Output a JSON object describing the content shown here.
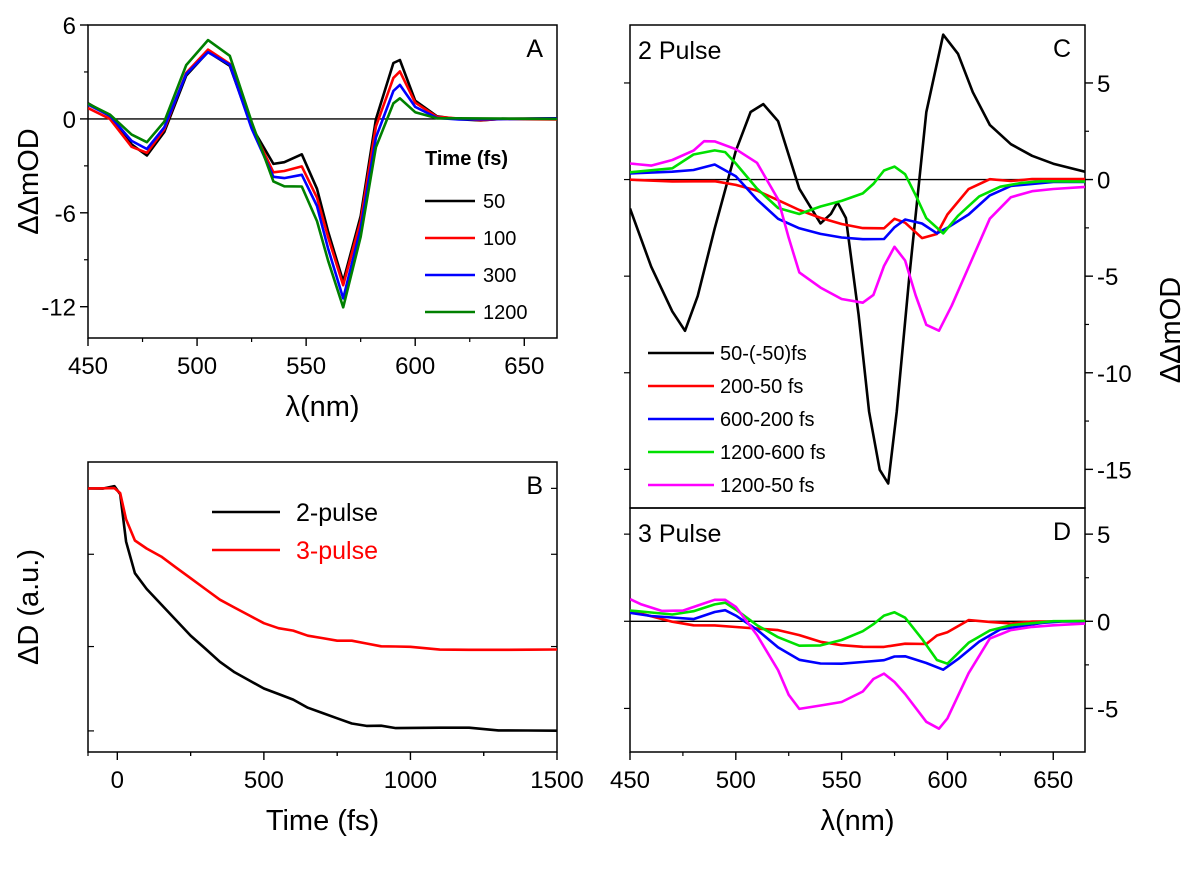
{
  "chart_data": [
    {
      "id": "A",
      "type": "line",
      "panel_letter": "A",
      "xlabel": "λ(nm)",
      "ylabel": "ΔΔmOD",
      "xlim": [
        450,
        665
      ],
      "ylim": [
        -14,
        6
      ],
      "xticks": [
        450,
        500,
        550,
        600,
        650
      ],
      "yticks": [
        6,
        0,
        -6,
        -12
      ],
      "zero_line": true,
      "legend_title": "Time (fs)",
      "legend_position": "center-right",
      "series": [
        {
          "name": "50",
          "color": "#000000",
          "x": [
            450,
            460,
            470,
            477,
            485,
            495,
            505,
            515,
            525,
            535,
            540,
            548,
            555,
            560,
            567,
            575,
            582,
            590,
            593,
            600,
            610,
            620,
            630,
            640,
            650,
            665
          ],
          "y": [
            1,
            0.2,
            -1.6,
            -2.3,
            -0.8,
            2.8,
            4.3,
            3.4,
            -0.5,
            -2.9,
            -2.8,
            -2.3,
            -4.5,
            -7.2,
            -10.4,
            -6.2,
            0,
            3.6,
            3.8,
            1.2,
            0.2,
            0,
            -0.1,
            0,
            0,
            0
          ]
        },
        {
          "name": "100",
          "color": "#ff0000",
          "x": [
            450,
            460,
            470,
            477,
            485,
            495,
            505,
            515,
            525,
            535,
            540,
            548,
            555,
            560,
            567,
            575,
            582,
            590,
            593,
            600,
            610,
            620,
            630,
            640,
            650,
            665
          ],
          "y": [
            0.7,
            0,
            -1.8,
            -2.2,
            -0.7,
            2.9,
            4.4,
            3.5,
            -0.5,
            -3.4,
            -3.3,
            -3.0,
            -5.0,
            -7.5,
            -10.6,
            -6.5,
            -0.5,
            2.6,
            3.0,
            1.0,
            0.1,
            0,
            -0.1,
            0,
            0,
            0
          ]
        },
        {
          "name": "300",
          "color": "#0000ff",
          "x": [
            450,
            460,
            470,
            477,
            485,
            495,
            505,
            515,
            525,
            535,
            540,
            548,
            555,
            560,
            567,
            575,
            582,
            590,
            593,
            600,
            610,
            620,
            630,
            640,
            650,
            665
          ],
          "y": [
            0.9,
            0.2,
            -1.4,
            -1.9,
            -0.5,
            2.9,
            4.3,
            3.5,
            -0.6,
            -3.7,
            -3.8,
            -3.6,
            -5.6,
            -8.3,
            -11.5,
            -7.0,
            -1.2,
            1.8,
            2.2,
            0.8,
            0.1,
            0,
            0,
            0,
            0,
            0
          ]
        },
        {
          "name": "1200",
          "color": "#008000",
          "x": [
            450,
            460,
            470,
            477,
            485,
            495,
            505,
            515,
            525,
            535,
            540,
            548,
            555,
            560,
            567,
            575,
            582,
            590,
            593,
            600,
            610,
            620,
            630,
            640,
            650,
            665
          ],
          "y": [
            1,
            0.3,
            -1.0,
            -1.5,
            -0.2,
            3.4,
            5.0,
            4.0,
            -0.2,
            -4.0,
            -4.3,
            -4.3,
            -6.5,
            -9.0,
            -12.0,
            -7.5,
            -1.8,
            1.0,
            1.3,
            0.4,
            0,
            0,
            0,
            0,
            0,
            0
          ]
        }
      ]
    },
    {
      "id": "B",
      "type": "line",
      "panel_letter": "B",
      "xlabel": "Time (fs)",
      "ylabel": "ΔD (a.u.)",
      "xlim": [
        -100,
        1500
      ],
      "ylim": [
        0,
        1.1
      ],
      "xticks": [
        0,
        500,
        1000,
        1500
      ],
      "yticks": [],
      "legend_position": "top-center",
      "series": [
        {
          "name": "2-pulse",
          "color": "#000000",
          "legend_color": "#000000",
          "x": [
            -100,
            -50,
            -10,
            10,
            30,
            60,
            100,
            150,
            200,
            250,
            300,
            350,
            400,
            450,
            500,
            550,
            600,
            650,
            700,
            750,
            800,
            850,
            900,
            950,
            1000,
            1100,
            1200,
            1300,
            1400,
            1500
          ],
          "y": [
            1.0,
            1.0,
            1.01,
            0.98,
            0.8,
            0.68,
            0.62,
            0.56,
            0.5,
            0.44,
            0.39,
            0.34,
            0.3,
            0.27,
            0.24,
            0.22,
            0.2,
            0.17,
            0.15,
            0.13,
            0.11,
            0.1,
            0.1,
            0.09,
            0.09,
            0.09,
            0.09,
            0.08,
            0.08,
            0.08
          ]
        },
        {
          "name": "3-pulse",
          "color": "#ff0000",
          "legend_color": "#ff0000",
          "x": [
            -100,
            -50,
            -10,
            10,
            30,
            60,
            100,
            150,
            200,
            250,
            300,
            350,
            400,
            450,
            500,
            550,
            600,
            650,
            700,
            750,
            800,
            850,
            900,
            950,
            1000,
            1100,
            1200,
            1300,
            1400,
            1500
          ],
          "y": [
            1.0,
            1.0,
            1.0,
            0.98,
            0.88,
            0.8,
            0.77,
            0.74,
            0.7,
            0.66,
            0.62,
            0.58,
            0.55,
            0.52,
            0.49,
            0.47,
            0.46,
            0.44,
            0.43,
            0.42,
            0.42,
            0.41,
            0.4,
            0.4,
            0.4,
            0.39,
            0.39,
            0.39,
            0.39,
            0.39
          ]
        }
      ]
    },
    {
      "id": "C",
      "type": "line",
      "panel_letter": "C",
      "panel_title": "2 Pulse",
      "xlabel": "",
      "ylabel": "ΔΔmOD",
      "xlim": [
        450,
        665
      ],
      "ylim": [
        -17,
        8
      ],
      "xticks": [],
      "yticks": [
        5,
        0,
        -5,
        -10,
        -15
      ],
      "zero_line": true,
      "legend_position": "bottom-left",
      "series": [
        {
          "name": "50-(-50)fs",
          "color": "#000000",
          "x": [
            450,
            460,
            470,
            476,
            482,
            490,
            500,
            507,
            513,
            520,
            530,
            540,
            545,
            548,
            552,
            558,
            563,
            568,
            572,
            576,
            582,
            590,
            598,
            605,
            612,
            620,
            630,
            640,
            650,
            665
          ],
          "y": [
            -1.5,
            -4.5,
            -6.8,
            -7.8,
            -6.0,
            -2.5,
            1.5,
            3.5,
            3.9,
            3.0,
            -0.5,
            -2.3,
            -1.8,
            -1.2,
            -2.0,
            -7.0,
            -12.0,
            -15.0,
            -15.7,
            -12.0,
            -5.0,
            3.5,
            7.5,
            6.5,
            4.5,
            2.8,
            1.8,
            1.2,
            0.8,
            0.4
          ]
        },
        {
          "name": "200-50 fs",
          "color": "#ff0000",
          "x": [
            450,
            470,
            490,
            500,
            510,
            520,
            530,
            540,
            550,
            560,
            570,
            575,
            580,
            588,
            595,
            600,
            610,
            620,
            630,
            640,
            650,
            665
          ],
          "y": [
            0,
            -0.1,
            -0.1,
            -0.3,
            -0.6,
            -1.1,
            -1.6,
            -2.0,
            -2.3,
            -2.5,
            -2.5,
            -2.0,
            -2.2,
            -3.0,
            -2.8,
            -1.8,
            -0.5,
            0,
            -0.1,
            0,
            0,
            0
          ]
        },
        {
          "name": "600-200 fs",
          "color": "#0000ff",
          "x": [
            450,
            470,
            480,
            490,
            500,
            510,
            520,
            530,
            540,
            550,
            560,
            570,
            575,
            580,
            588,
            595,
            600,
            610,
            620,
            630,
            640,
            650,
            665
          ],
          "y": [
            0.3,
            0.4,
            0.5,
            0.8,
            0.2,
            -1.0,
            -2.0,
            -2.5,
            -2.8,
            -3.0,
            -3.1,
            -3.1,
            -2.5,
            -2.1,
            -2.3,
            -2.8,
            -2.5,
            -1.8,
            -0.8,
            -0.3,
            -0.2,
            -0.1,
            -0.1
          ]
        },
        {
          "name": "1200-600 fs",
          "color": "#00e000",
          "x": [
            450,
            470,
            480,
            490,
            495,
            500,
            510,
            520,
            530,
            540,
            550,
            560,
            565,
            570,
            575,
            580,
            585,
            590,
            598,
            605,
            615,
            625,
            635,
            645,
            655,
            665
          ],
          "y": [
            0.4,
            0.6,
            1.3,
            1.5,
            1.4,
            0.8,
            -0.5,
            -1.5,
            -1.8,
            -1.4,
            -1.1,
            -0.7,
            -0.2,
            0.5,
            0.7,
            0.3,
            -0.8,
            -2.0,
            -2.8,
            -1.9,
            -0.9,
            -0.4,
            -0.2,
            -0.1,
            -0.1,
            -0.1
          ]
        },
        {
          "name": "1200-50 fs",
          "color": "#ff00ff",
          "x": [
            450,
            460,
            470,
            480,
            485,
            490,
            500,
            510,
            520,
            525,
            530,
            540,
            550,
            560,
            565,
            570,
            575,
            580,
            585,
            590,
            596,
            602,
            610,
            620,
            630,
            640,
            650,
            665
          ],
          "y": [
            0.8,
            0.7,
            1.0,
            1.5,
            2.0,
            2.0,
            1.6,
            0.9,
            -1.0,
            -3.0,
            -4.8,
            -5.6,
            -6.2,
            -6.4,
            -6.0,
            -4.5,
            -3.5,
            -4.2,
            -6.0,
            -7.5,
            -7.8,
            -6.5,
            -4.5,
            -2.0,
            -0.9,
            -0.6,
            -0.5,
            -0.4
          ]
        }
      ]
    },
    {
      "id": "D",
      "type": "line",
      "panel_letter": "D",
      "panel_title": "3 Pulse",
      "xlabel": "λ(nm)",
      "ylabel": "",
      "xlim": [
        450,
        665
      ],
      "ylim": [
        -7.5,
        6.5
      ],
      "xticks": [
        450,
        500,
        550,
        600,
        650
      ],
      "yticks": [
        5,
        0,
        -5
      ],
      "zero_line": true,
      "series": [
        {
          "name": "200-50 fs",
          "color": "#ff0000",
          "x": [
            450,
            460,
            470,
            480,
            490,
            500,
            510,
            520,
            530,
            540,
            550,
            560,
            570,
            575,
            580,
            590,
            595,
            600,
            610,
            620,
            630,
            640,
            650,
            665
          ],
          "y": [
            0.6,
            0.3,
            0,
            -0.2,
            -0.2,
            -0.3,
            -0.4,
            -0.5,
            -0.8,
            -1.2,
            -1.4,
            -1.5,
            -1.5,
            -1.4,
            -1.3,
            -1.3,
            -0.8,
            -0.6,
            0.1,
            0,
            -0.1,
            0,
            0,
            0
          ]
        },
        {
          "name": "600-200 fs",
          "color": "#0000ff",
          "x": [
            450,
            460,
            470,
            480,
            490,
            495,
            500,
            510,
            520,
            530,
            540,
            550,
            560,
            570,
            575,
            580,
            590,
            598,
            605,
            615,
            625,
            635,
            645,
            655,
            665
          ],
          "y": [
            0.5,
            0.3,
            0.2,
            0.1,
            0.5,
            0.6,
            0.3,
            -0.5,
            -1.5,
            -2.2,
            -2.4,
            -2.4,
            -2.3,
            -2.2,
            -2.0,
            -2.0,
            -2.4,
            -2.8,
            -2.2,
            -1.2,
            -0.5,
            -0.3,
            -0.1,
            0,
            0
          ]
        },
        {
          "name": "1200-600 fs",
          "color": "#00e000",
          "x": [
            450,
            460,
            470,
            480,
            490,
            495,
            500,
            510,
            520,
            530,
            540,
            550,
            560,
            565,
            570,
            575,
            580,
            588,
            595,
            600,
            610,
            620,
            630,
            640,
            650,
            665
          ],
          "y": [
            0.6,
            0.5,
            0.4,
            0.6,
            1.0,
            1.1,
            0.7,
            -0.2,
            -0.9,
            -1.4,
            -1.4,
            -1.1,
            -0.6,
            -0.2,
            0.3,
            0.5,
            0.2,
            -1.0,
            -2.2,
            -2.4,
            -1.2,
            -0.5,
            -0.2,
            -0.1,
            0,
            0
          ]
        },
        {
          "name": "1200-50 fs",
          "color": "#ff00ff",
          "x": [
            450,
            455,
            465,
            475,
            485,
            490,
            495,
            500,
            505,
            510,
            520,
            525,
            530,
            540,
            550,
            560,
            565,
            570,
            575,
            580,
            590,
            596,
            600,
            610,
            620,
            630,
            640,
            650,
            665
          ],
          "y": [
            1.3,
            1.0,
            0.6,
            0.6,
            1.0,
            1.2,
            1.2,
            0.8,
            0,
            -0.8,
            -2.8,
            -4.2,
            -5.0,
            -4.8,
            -4.6,
            -4.0,
            -3.3,
            -3.0,
            -3.5,
            -4.2,
            -5.8,
            -6.2,
            -5.6,
            -3.0,
            -1.0,
            -0.5,
            -0.3,
            -0.2,
            -0.1
          ]
        }
      ]
    }
  ]
}
